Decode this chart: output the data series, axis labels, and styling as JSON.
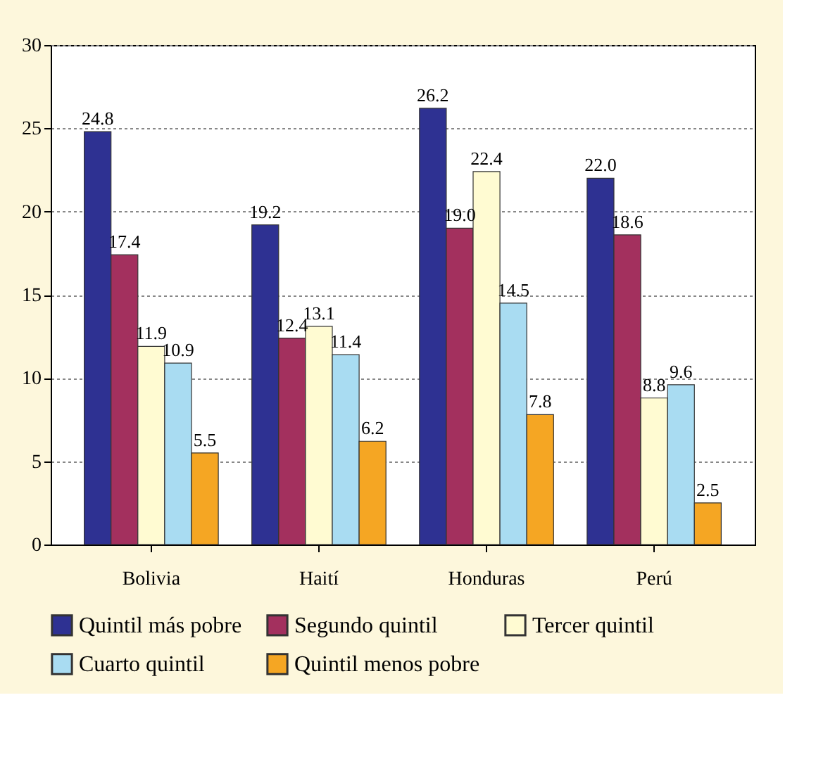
{
  "chart_data": {
    "type": "bar",
    "categories": [
      "Bolivia",
      "Haití",
      "Honduras",
      "Perú"
    ],
    "series": [
      {
        "name": "Quintil más pobre",
        "color": "#2e3192",
        "values": [
          24.8,
          19.2,
          26.2,
          22.0
        ]
      },
      {
        "name": "Segundo quintil",
        "color": "#a3305e",
        "values": [
          17.4,
          12.4,
          19.0,
          18.6
        ]
      },
      {
        "name": "Tercer quintil",
        "color": "#fffbd2",
        "values": [
          11.9,
          13.1,
          22.4,
          8.8
        ]
      },
      {
        "name": "Cuarto quintil",
        "color": "#a9dcf2",
        "values": [
          10.9,
          11.4,
          14.5,
          9.6
        ]
      },
      {
        "name": "Quintil menos pobre",
        "color": "#f5a623",
        "values": [
          5.5,
          6.2,
          7.8,
          2.5
        ]
      }
    ],
    "value_labels": [
      [
        "24.8",
        "19.2",
        "26.2",
        "22.0"
      ],
      [
        "17.4",
        "12.4",
        "19.0",
        "18.6"
      ],
      [
        "11.9",
        "13.1",
        "22.4",
        "8.8"
      ],
      [
        "10.9",
        "11.4",
        "14.5",
        "9.6"
      ],
      [
        "5.5",
        "6.2",
        "7.8",
        "2.5"
      ]
    ],
    "ylim": [
      0,
      30
    ],
    "yticks": [
      0,
      5,
      10,
      15,
      20,
      25,
      30
    ],
    "grid": "y",
    "legend": "bottom"
  }
}
